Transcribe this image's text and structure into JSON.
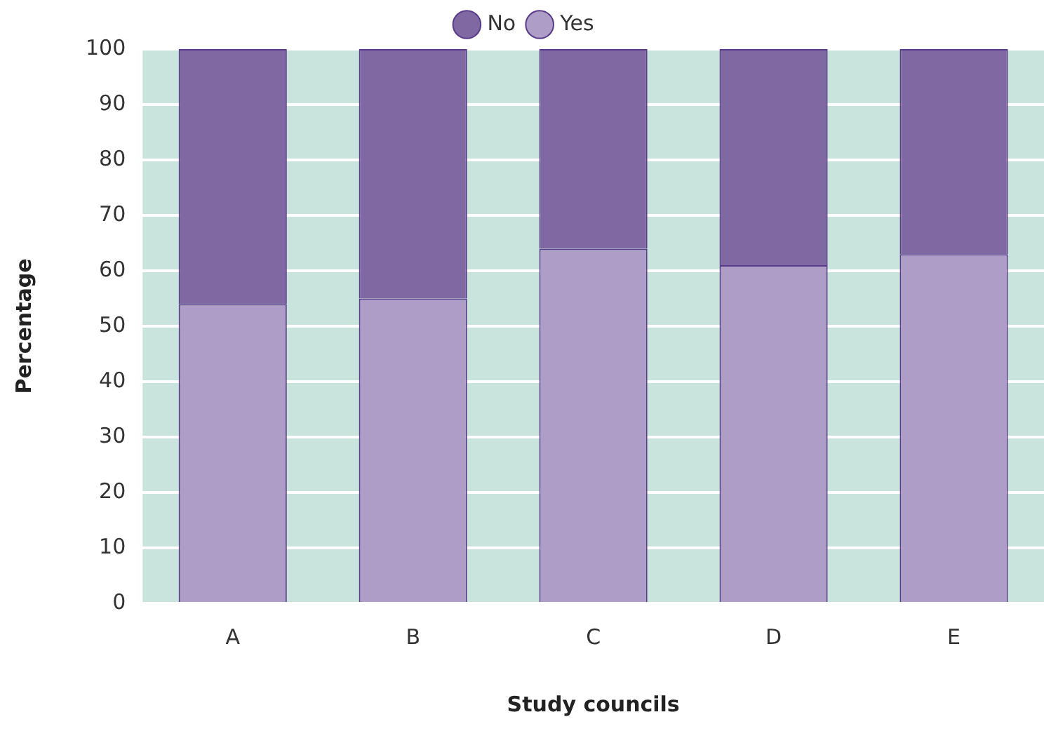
{
  "chart_data": {
    "type": "bar",
    "stacked": true,
    "xlabel": "Study councils",
    "ylabel": "Percentage",
    "categories": [
      "A",
      "B",
      "C",
      "D",
      "E"
    ],
    "series": [
      {
        "name": "Yes",
        "color": "#ae9dc7",
        "values": [
          54,
          55,
          64,
          61,
          63
        ]
      },
      {
        "name": "No",
        "color": "#8068a3",
        "values": [
          46,
          45,
          36,
          39,
          37
        ]
      }
    ],
    "ylim": [
      0,
      100
    ],
    "yticks": [
      0,
      10,
      20,
      30,
      40,
      50,
      60,
      70,
      80,
      90,
      100
    ],
    "grid": "y",
    "legend": "top"
  }
}
